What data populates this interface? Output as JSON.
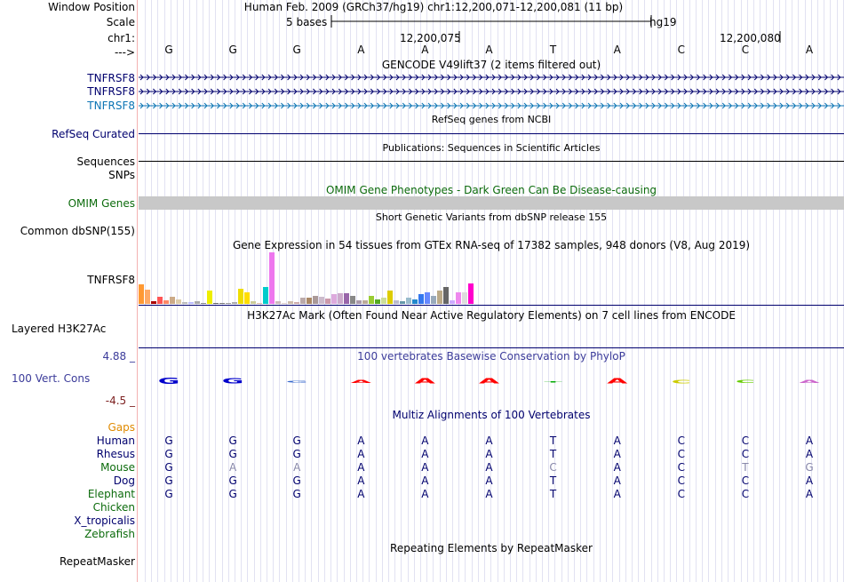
{
  "colors": {
    "navy": "#00006e",
    "black": "#000000",
    "green": "#0c6b0c",
    "gencodeBlue": "#0c74b4",
    "phylo": "#3b3b9a",
    "brown": "#7b1e1e",
    "gaps": "#e08a00",
    "omimGray": "#c8c8c8"
  },
  "header": {
    "window_position_label": "Window Position",
    "window_position_text": "Human Feb. 2009 (GRCh37/hg19)   chr1:12,200,071-12,200,081 (11 bp)",
    "scale_label": "Scale",
    "scale_bar_text": "5 bases",
    "scale_assembly": "hg19",
    "chrom_label": "chr1:",
    "tick_1": "12,200,075",
    "tick_2": "12,200,080",
    "arrow_label": "--->"
  },
  "bases": [
    "G",
    "G",
    "G",
    "A",
    "A",
    "A",
    "T",
    "A",
    "C",
    "C",
    "A"
  ],
  "tracks": {
    "gencode_title": "GENCODE V49lift37 (2 items filtered out)",
    "gencode_items": [
      "TNFRSF8",
      "TNFRSF8",
      "TNFRSF8"
    ],
    "refseq_title": "RefSeq genes from NCBI",
    "refseq_label": "RefSeq Curated",
    "publications_title": "Publications: Sequences in Scientific Articles",
    "sequences_label": "Sequences",
    "snps_label": "SNPs",
    "omim_title": "OMIM Gene Phenotypes - Dark Green Can Be Disease-causing",
    "omim_label": "OMIM Genes",
    "dbsnp_title": "Short Genetic Variants from dbSNP release 155",
    "dbsnp_label": "Common dbSNP(155)",
    "gtex_title": "Gene Expression in 54 tissues from GTEx RNA-seq of 17382 samples, 948 donors (V8, Aug 2019)",
    "gtex_label": "TNFRSF8",
    "h3k27_title": "H3K27Ac Mark (Often Found Near Active Regulatory Elements) on 7 cell lines from ENCODE",
    "h3k27_label": "Layered H3K27Ac",
    "phylop_title": "100 vertebrates Basewise Conservation by PhyloP",
    "phylop_label": "100 Vert. Cons",
    "phylop_max": "4.88 _",
    "phylop_min": "-4.5 _",
    "multiz_title": "Multiz Alignments of 100 Vertebrates",
    "gaps_label": "Gaps",
    "repeat_title": "Repeating Elements by RepeatMasker",
    "repeat_label": "RepeatMasker"
  },
  "gtex_bars": {
    "heights": [
      21,
      15,
      3,
      8,
      4,
      8,
      5,
      2,
      2,
      3,
      1,
      14,
      1,
      1,
      1,
      2,
      16,
      12,
      3,
      1,
      18,
      55,
      3,
      1,
      3,
      2,
      7,
      7,
      9,
      8,
      6,
      10,
      11,
      11,
      9,
      4,
      4,
      9,
      5,
      7,
      14,
      4,
      3,
      7,
      5,
      10,
      12,
      9,
      14,
      18,
      4,
      12,
      12,
      22
    ],
    "colors": [
      "#ff9933",
      "#ffaa66",
      "#aa0000",
      "#ff5555",
      "#ff8866",
      "#ccaa88",
      "#ddccaa",
      "#bbbbbb",
      "#bbbbff",
      "#aaaaaa",
      "#888888",
      "#eeee00",
      "#666666",
      "#777777",
      "#999999",
      "#aaaaaa",
      "#eedd00",
      "#ffdd00",
      "#cccc99",
      "#ddbbaa",
      "#00cccc",
      "#ee77ee",
      "#ccbbbb",
      "#ddcccc",
      "#ccbbaa",
      "#ccaaaa",
      "#bbaaaa",
      "#aa8866",
      "#aa9999",
      "#ccbbcc",
      "#cc99aa",
      "#ddaadd",
      "#ccaacc",
      "#9966aa",
      "#888888",
      "#aa99aa",
      "#bbaa99",
      "#99cc33",
      "#55aa22",
      "#ccdd99",
      "#ddcc00",
      "#bbbbcc",
      "#6699aa",
      "#99bbcc",
      "#2288cc",
      "#3377ee",
      "#6688ff",
      "#99aabb",
      "#bbaa88",
      "#666666",
      "#ccaaff",
      "#ee88ee",
      "#dddddd",
      "#ff00cc"
    ]
  },
  "conservation": {
    "letters": [
      "G",
      "G",
      "G",
      "A",
      "A",
      "A",
      "T",
      "A",
      "C",
      "C",
      "A"
    ],
    "heights": [
      7,
      6,
      2,
      3,
      6,
      6,
      1,
      6,
      4,
      3,
      3
    ],
    "colors": [
      "#0000cc",
      "#0000cc",
      "#3366cc",
      "#ff0000",
      "#ff0000",
      "#ff0000",
      "#00aa00",
      "#ff0000",
      "#cccc00",
      "#66cc00",
      "#cc66cc"
    ]
  },
  "species": [
    {
      "name": "Human",
      "color": "#00006e",
      "bases": [
        "G",
        "G",
        "G",
        "A",
        "A",
        "A",
        "T",
        "A",
        "C",
        "C",
        "A"
      ],
      "dim": [
        0,
        0,
        0,
        0,
        0,
        0,
        0,
        0,
        0,
        0,
        0
      ]
    },
    {
      "name": "Rhesus",
      "color": "#00006e",
      "bases": [
        "G",
        "G",
        "G",
        "A",
        "A",
        "A",
        "T",
        "A",
        "C",
        "C",
        "A"
      ],
      "dim": [
        0,
        0,
        0,
        0,
        0,
        0,
        0,
        0,
        0,
        0,
        0
      ]
    },
    {
      "name": "Mouse",
      "color": "#0c6b0c",
      "bases": [
        "G",
        "A",
        "A",
        "A",
        "A",
        "A",
        "C",
        "A",
        "C",
        "T",
        "G"
      ],
      "dim": [
        0,
        1,
        1,
        0,
        0,
        0,
        1,
        0,
        0,
        1,
        1
      ]
    },
    {
      "name": "Dog",
      "color": "#00006e",
      "bases": [
        "G",
        "G",
        "G",
        "A",
        "A",
        "A",
        "T",
        "A",
        "C",
        "C",
        "A"
      ],
      "dim": [
        0,
        0,
        0,
        0,
        0,
        0,
        0,
        0,
        0,
        0,
        0
      ]
    },
    {
      "name": "Elephant",
      "color": "#0c6b0c",
      "bases": [
        "G",
        "G",
        "G",
        "A",
        "A",
        "A",
        "T",
        "A",
        "C",
        "C",
        "A"
      ],
      "dim": [
        0,
        0,
        0,
        0,
        0,
        0,
        0,
        0,
        0,
        0,
        0
      ]
    },
    {
      "name": "Chicken",
      "color": "#0c6b0c",
      "bases": [],
      "dim": []
    },
    {
      "name": "X_tropicalis",
      "color": "#00006e",
      "bases": [],
      "dim": []
    },
    {
      "name": "Zebrafish",
      "color": "#0c6b0c",
      "bases": [],
      "dim": []
    }
  ]
}
